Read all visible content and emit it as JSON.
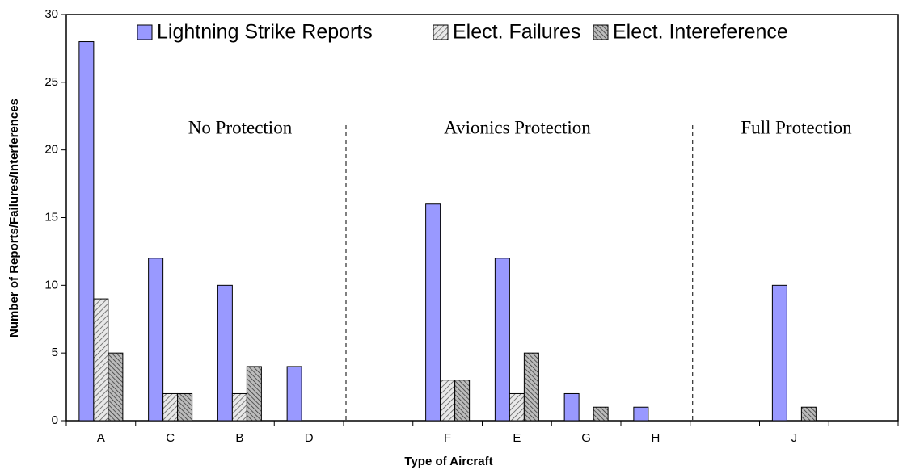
{
  "chart_data": {
    "type": "bar",
    "categories": [
      "A",
      "C",
      "B",
      "D",
      null,
      "F",
      "E",
      "G",
      "H",
      null,
      "J",
      null
    ],
    "series": [
      {
        "name": "Lightning Strike Reports",
        "color": "#9999ff",
        "values": [
          28,
          12,
          10,
          4,
          null,
          16,
          12,
          2,
          1,
          null,
          10,
          null
        ]
      },
      {
        "name": "Elect. Failures",
        "color": "#d8d8d8",
        "values": [
          9,
          2,
          2,
          0,
          null,
          3,
          2,
          0,
          0,
          null,
          0,
          null
        ]
      },
      {
        "name": "Elect. Intereference",
        "color": "#a8a8a8",
        "values": [
          5,
          2,
          4,
          0,
          null,
          3,
          5,
          1,
          0,
          null,
          1,
          null
        ]
      }
    ],
    "ylim": [
      0,
      30
    ],
    "yticks": [
      0,
      5,
      10,
      15,
      20,
      25,
      30
    ],
    "xlabel": "Type of Aircraft",
    "ylabel": "Number of Reports/Failures/Interferences",
    "annotations": [
      "No Protection",
      "Avionics Protection",
      "Full Protection"
    ]
  }
}
